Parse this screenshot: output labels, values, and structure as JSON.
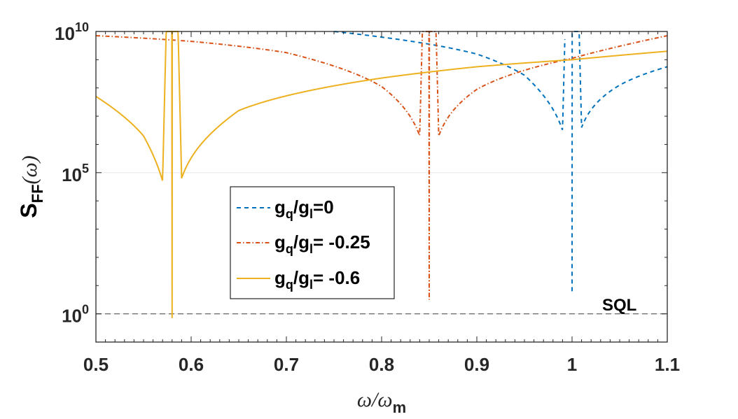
{
  "chart_data": {
    "type": "line",
    "title": "",
    "xlabel": {
      "main": "ω/ω",
      "sub": "m"
    },
    "ylabel": {
      "main": "S",
      "sub": "FF",
      "tail": "(ω)"
    },
    "xlim": [
      0.5,
      1.1
    ],
    "ylim_log10": [
      -1,
      10
    ],
    "y_scale": "log",
    "x_ticks": [
      0.5,
      0.6,
      0.7,
      0.8,
      0.9,
      1,
      1.1
    ],
    "x_tick_labels": [
      "0.5",
      "0.6",
      "0.7",
      "0.8",
      "0.9",
      "1",
      "1.1"
    ],
    "y_ticks_log10": [
      0,
      5,
      10
    ],
    "y_tick_labels": [
      {
        "base": "10",
        "exp": "0"
      },
      {
        "base": "10",
        "exp": "5"
      },
      {
        "base": "10",
        "exp": "10"
      }
    ],
    "grid": "horizontal",
    "legend_position": "center-left",
    "series": [
      {
        "name": "gq/gl=0",
        "label": {
          "g1": "g",
          "s1": "q",
          "slash": "/g",
          "s2": "l",
          "rest": "=0"
        },
        "color": "#0072BD",
        "style": "dashed",
        "resonance": 1.0,
        "min_log10": 0.8,
        "x": [
          0.75,
          0.8,
          0.85,
          0.9,
          0.95,
          0.99,
          1.0,
          1.01,
          1.05,
          1.1
        ],
        "log10_y": [
          10.0,
          9.8,
          9.55,
          9.2,
          8.45,
          6.5,
          0.8,
          6.6,
          8.1,
          8.75
        ]
      },
      {
        "name": "gq/gl= -0.25",
        "label": {
          "g1": "g",
          "s1": "q",
          "slash": "/g",
          "s2": "l",
          "rest": "= -0.25"
        },
        "color": "#D95319",
        "style": "dashdot",
        "resonance": 0.85,
        "min_log10": 0.5,
        "x": [
          0.5,
          0.6,
          0.7,
          0.8,
          0.84,
          0.85,
          0.86,
          0.9,
          1.0,
          1.1
        ],
        "log10_y": [
          9.85,
          9.65,
          9.25,
          8.05,
          6.3,
          0.5,
          6.3,
          7.95,
          9.05,
          9.85
        ]
      },
      {
        "name": "gq/gl= -0.6",
        "label": {
          "g1": "g",
          "s1": "q",
          "slash": "/g",
          "s2": "l",
          "rest": "= -0.6"
        },
        "color": "#EDB120",
        "style": "solid",
        "resonance": 0.58,
        "min_log10": -0.15,
        "x": [
          0.5,
          0.55,
          0.57,
          0.58,
          0.59,
          0.65,
          0.8,
          0.9,
          1.0,
          1.1
        ],
        "log10_y": [
          7.7,
          6.3,
          4.7,
          -0.15,
          4.8,
          7.2,
          8.35,
          8.75,
          9.0,
          9.3
        ]
      }
    ],
    "reference_line": {
      "label": "SQL",
      "log10_y": 0,
      "color": "#666666",
      "style": "dashed"
    }
  }
}
